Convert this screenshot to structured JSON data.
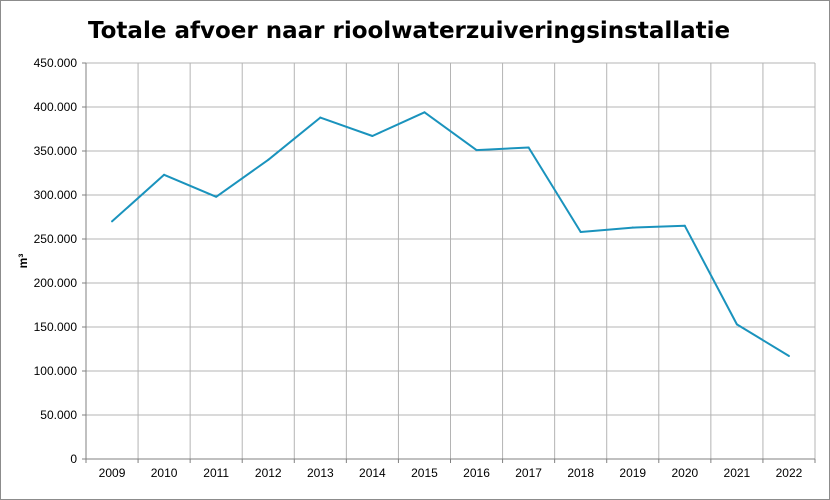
{
  "chart_data": {
    "type": "line",
    "title": "Totale afvoer naar rioolwaterzuiveringsinstallatie",
    "xlabel": "",
    "ylabel": "m³",
    "categories": [
      "2009",
      "2010",
      "2011",
      "2012",
      "2013",
      "2014",
      "2015",
      "2016",
      "2017",
      "2018",
      "2019",
      "2020",
      "2021",
      "2022"
    ],
    "series": [
      {
        "name": "",
        "color": "#1a93bd",
        "values": [
          270000,
          323000,
          298000,
          340000,
          388000,
          367000,
          394000,
          351000,
          354000,
          258000,
          263000,
          265000,
          153000,
          117000
        ]
      }
    ],
    "ylim": [
      0,
      450000
    ],
    "yticks": [
      0,
      50000,
      100000,
      150000,
      200000,
      250000,
      300000,
      350000,
      400000,
      450000
    ],
    "ytick_labels": [
      "0",
      "50.000",
      "100.000",
      "150.000",
      "200.000",
      "250.000",
      "300.000",
      "350.000",
      "400.000",
      "450.000"
    ],
    "grid": true,
    "legend": "none"
  }
}
